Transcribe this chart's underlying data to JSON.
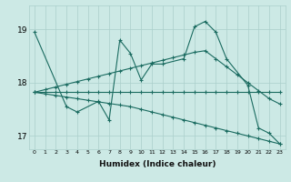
{
  "xlabel": "Humidex (Indice chaleur)",
  "bg_color": "#cce9e5",
  "grid_color": "#aacfcb",
  "line_color": "#1a6b60",
  "ylim": [
    16.75,
    19.45
  ],
  "yticks": [
    17,
    18,
    19
  ],
  "xlim": [
    -0.5,
    23.5
  ],
  "main_x": [
    0,
    3,
    4,
    6,
    7,
    8,
    9,
    10,
    11,
    12,
    14,
    15,
    16,
    17,
    18,
    20,
    21,
    22,
    23
  ],
  "main_y": [
    18.95,
    17.55,
    17.45,
    17.65,
    17.3,
    18.8,
    18.55,
    18.05,
    18.35,
    18.35,
    18.45,
    19.05,
    19.15,
    18.95,
    18.45,
    17.95,
    17.15,
    17.05,
    16.85
  ],
  "upper_x": [
    0,
    1,
    2,
    3,
    4,
    5,
    6,
    7,
    8,
    9,
    10,
    11,
    12,
    13,
    14,
    15,
    16,
    17,
    18,
    19,
    20,
    21,
    22,
    23
  ],
  "upper_y": [
    17.82,
    17.87,
    17.92,
    17.97,
    18.02,
    18.07,
    18.12,
    18.17,
    18.22,
    18.27,
    18.32,
    18.37,
    18.42,
    18.47,
    18.52,
    18.57,
    18.6,
    18.45,
    18.3,
    18.15,
    18.0,
    17.85,
    17.7,
    17.6
  ],
  "lower_x": [
    0,
    1,
    2,
    3,
    4,
    5,
    6,
    7,
    8,
    9,
    10,
    11,
    12,
    13,
    14,
    15,
    16,
    17,
    18,
    19,
    20,
    21,
    22,
    23
  ],
  "lower_y": [
    17.82,
    17.79,
    17.76,
    17.73,
    17.7,
    17.67,
    17.64,
    17.61,
    17.58,
    17.55,
    17.5,
    17.45,
    17.4,
    17.35,
    17.3,
    17.25,
    17.2,
    17.15,
    17.1,
    17.05,
    17.0,
    16.95,
    16.9,
    16.85
  ],
  "mid_x": [
    0,
    1,
    2,
    3,
    4,
    5,
    6,
    7,
    8,
    9,
    10,
    11,
    12,
    13,
    14,
    15,
    16,
    17,
    18,
    19,
    20,
    21,
    22,
    23
  ],
  "mid_y": [
    17.82,
    17.82,
    17.82,
    17.82,
    17.82,
    17.82,
    17.82,
    17.82,
    17.82,
    17.82,
    17.82,
    17.82,
    17.82,
    17.82,
    17.82,
    17.82,
    17.82,
    17.82,
    17.82,
    17.82,
    17.82,
    17.82,
    17.82,
    17.82
  ]
}
